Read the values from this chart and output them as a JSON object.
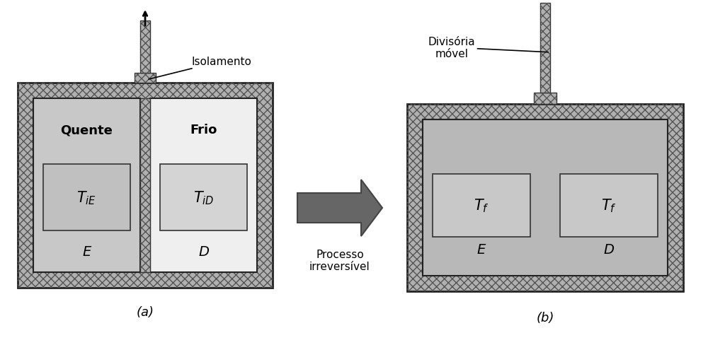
{
  "fig_width": 10.24,
  "fig_height": 4.89,
  "bg_color": "#ffffff",
  "ins_fc": "#b0b0b0",
  "ins_ec": "#222222",
  "ins_hatch": "xxx",
  "hot_fc": "#c8c8c8",
  "cold_fc": "#efefef",
  "unified_fc": "#b8b8b8",
  "inner_box_hot_fc": "#c0c0c0",
  "inner_box_cold_fc": "#d4d4d4",
  "inner_box_b_fc": "#c8c8c8",
  "divider_fc": "#b0b0b0",
  "arrow_fc": "#666666",
  "arrow_ec": "#444444",
  "text_quente": "Quente",
  "text_frio": "Frio",
  "text_TiE": "$T_{iE}$",
  "text_TiD": "$T_{iD}$",
  "text_Tf_left": "$T_f$",
  "text_Tf_right": "$T_f$",
  "text_E": "E",
  "text_D": "D",
  "text_isolamento": "Isolamento",
  "text_divisoria": "Divisória\nmóvel",
  "text_processo": "Processo\nirreversível",
  "label_a": "(a)",
  "label_b": "(b)"
}
